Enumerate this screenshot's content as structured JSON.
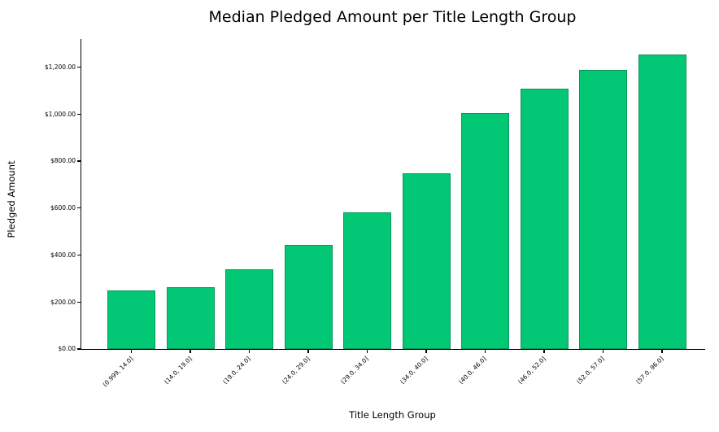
{
  "chart_data": {
    "type": "bar",
    "title": "Median Pledged Amount per Title Length Group",
    "xlabel": "Title Length Group",
    "ylabel": "Pledged Amount",
    "categories": [
      "(0.999, 14.0]",
      "(14.0, 19.0]",
      "(19.0, 24.0]",
      "(24.0, 29.0]",
      "(29.0, 34.0]",
      "(34.0, 40.0]",
      "(40.0, 46.0]",
      "(46.0, 52.0]",
      "(52.0, 57.0]",
      "(57.0, 96.0]"
    ],
    "values": [
      250,
      262,
      340,
      443,
      582,
      748,
      1005,
      1108,
      1190,
      1253
    ],
    "ylim": [
      0,
      1320
    ],
    "yticks": [
      0,
      200,
      400,
      600,
      800,
      1000,
      1200
    ],
    "ytick_labels": [
      "$0.00",
      "$200.00",
      "$400.00",
      "$600.00",
      "$800.00",
      "$1,000.00",
      "$1,200.00"
    ],
    "grid": false,
    "legend": null,
    "bar_fill_color": "#02C875",
    "bar_edge_color": "#0C9658",
    "axis_color": "#000000",
    "background_color": "#FFFFFF"
  }
}
